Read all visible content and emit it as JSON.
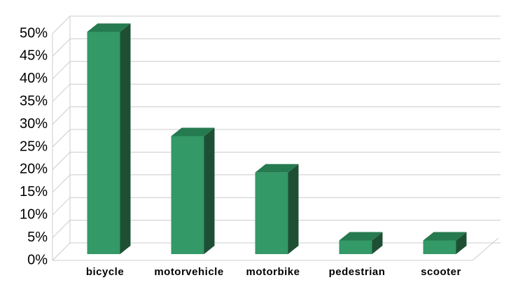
{
  "chart_data": {
    "type": "bar3d",
    "categories": [
      "bicycle",
      "motorvehicle",
      "motorbike",
      "pedestrian",
      "scooter"
    ],
    "values": [
      49,
      26,
      18,
      3,
      3
    ],
    "color": "#339966",
    "ylim": [
      0,
      50
    ],
    "yticks": [
      {
        "value": 0,
        "label": "0%"
      },
      {
        "value": 5,
        "label": "5%"
      },
      {
        "value": 10,
        "label": "10%"
      },
      {
        "value": 15,
        "label": "15%"
      },
      {
        "value": 20,
        "label": "20%"
      },
      {
        "value": 25,
        "label": "25%"
      },
      {
        "value": 30,
        "label": "30%"
      },
      {
        "value": 35,
        "label": "35%"
      },
      {
        "value": 40,
        "label": "40%"
      },
      {
        "value": 45,
        "label": "45%"
      },
      {
        "value": 50,
        "label": "50%"
      }
    ],
    "grid": true
  }
}
